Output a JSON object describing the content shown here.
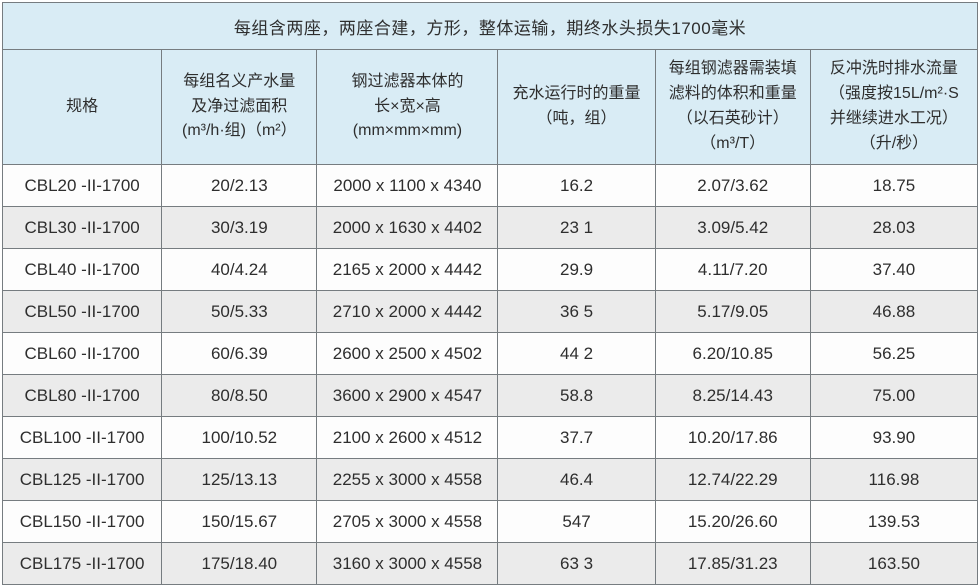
{
  "title": "每组含两座，两座合建，方形，整体运输，期终水头损失1700毫米",
  "colors": {
    "header_bg": "#d9ecf5",
    "row_alt_bg": "#ebebeb",
    "row_bg": "#fdfdfd",
    "border": "#767c80",
    "text": "#2e2e2e"
  },
  "table": {
    "headers": [
      "规格",
      "每组名义产水量\n及净过滤面积\n(m³/h·组)（m²）",
      "钢过滤器本体的\n长×宽×高\n(mm×mm×mm)",
      "充水运行时的重量\n（吨，组）",
      "每组钢滤器需装填\n滤料的体积和重量\n（以石英砂计）\n（m³/T）",
      "反冲洗时排水流量\n（强度按15L/m²·S\n并继续进水工况）\n（升/秒）"
    ],
    "rows": [
      [
        "CBL20 -II-1700",
        "20/2.13",
        "2000 x 1100 x 4340",
        "16.2",
        "2.07/3.62",
        "18.75"
      ],
      [
        "CBL30 -II-1700",
        "30/3.19",
        "2000 x 1630 x 4402",
        "23 1",
        "3.09/5.42",
        "28.03"
      ],
      [
        "CBL40 -II-1700",
        "40/4.24",
        "2165 x 2000 x 4442",
        "29.9",
        "4.11/7.20",
        "37.40"
      ],
      [
        "CBL50 -II-1700",
        "50/5.33",
        "2710 x 2000 x 4442",
        "36 5",
        "5.17/9.05",
        "46.88"
      ],
      [
        "CBL60 -II-1700",
        "60/6.39",
        "2600 x 2500 x 4502",
        "44 2",
        "6.20/10.85",
        "56.25"
      ],
      [
        "CBL80 -II-1700",
        "80/8.50",
        "3600 x 2900 x 4547",
        "58.8",
        "8.25/14.43",
        "75.00"
      ],
      [
        "CBL100 -II-1700",
        "100/10.52",
        "2100 x 2600 x 4512",
        "37.7",
        "10.20/17.86",
        "93.90"
      ],
      [
        "CBL125 -II-1700",
        "125/13.13",
        "2255 x 3000 x 4558",
        "46.4",
        "12.74/22.29",
        "116.98"
      ],
      [
        "CBL150 -II-1700",
        "150/15.67",
        "2705 x 3000 x 4558",
        "547",
        "15.20/26.60",
        "139.53"
      ],
      [
        "CBL175 -II-1700",
        "175/18.40",
        "3160 x 3000 x 4558",
        "63 3",
        "17.85/31.23",
        "163.50"
      ]
    ]
  }
}
